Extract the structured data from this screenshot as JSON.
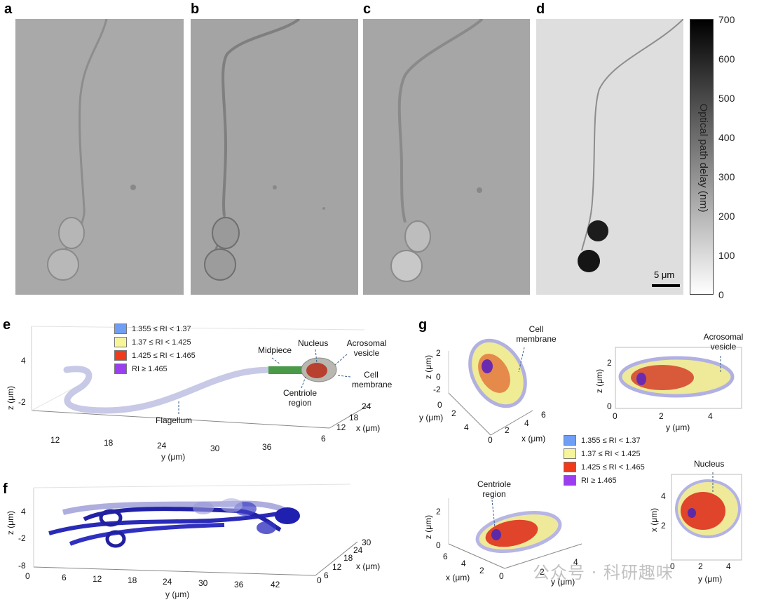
{
  "panels": {
    "a": "a",
    "b": "b",
    "c": "c",
    "d": "d",
    "e": "e",
    "f": "f",
    "g": "g"
  },
  "colorbar": {
    "title": "Optical path delay (nm)",
    "ticks": [
      "700",
      "600",
      "500",
      "400",
      "300",
      "200",
      "100",
      "0"
    ],
    "scale_bar": "5 μm"
  },
  "legend": {
    "items": [
      {
        "label": "1.355 ≤ RI < 1.37",
        "color": "#6e9ef5"
      },
      {
        "label": "1.37 ≤ RI < 1.425",
        "color": "#f7f59a"
      },
      {
        "label": "1.425 ≤ RI < 1.465",
        "color": "#f03a1c"
      },
      {
        "label": "RI ≥ 1.465",
        "color": "#9b3ef0"
      }
    ]
  },
  "panel_e": {
    "annotations": {
      "midpiece": "Midpiece",
      "nucleus": "Nucleus",
      "acrosomal": "Acrosomal vesicle",
      "cell_membrane": "Cell membrane",
      "centriole": "Centriole region",
      "flagellum": "Flagellum"
    },
    "z_label": "z (μm)",
    "z_ticks": [
      "4",
      "-2"
    ],
    "y_label": "y (μm)",
    "y_ticks": [
      "12",
      "18",
      "24",
      "30",
      "36"
    ],
    "x_label": "x (μm)",
    "x_ticks": [
      "24",
      "18",
      "12",
      "6"
    ]
  },
  "panel_f": {
    "z_label": "z (μm)",
    "z_ticks": [
      "4",
      "-2",
      "-8"
    ],
    "y_label": "y (μm)",
    "y_ticks": [
      "0",
      "6",
      "12",
      "18",
      "24",
      "30",
      "36",
      "42"
    ],
    "x_label": "x (μm)",
    "x_ticks": [
      "30",
      "24",
      "18",
      "12",
      "6",
      "0"
    ]
  },
  "panel_g": {
    "top_left": {
      "annotation": "Cell membrane",
      "z_label": "z (μm)",
      "z_ticks": [
        "2",
        "0",
        "-2"
      ],
      "y_label": "y (μm)",
      "y_ticks": [
        "0",
        "2",
        "4"
      ],
      "x_label": "x (μm)",
      "x_ticks": [
        "0",
        "2",
        "4",
        "6"
      ]
    },
    "top_right": {
      "annotation": "Acrosomal vesicle",
      "z_label": "z (μm)",
      "z_ticks": [
        "2",
        "0"
      ],
      "y_label": "y (μm)",
      "y_ticks": [
        "0",
        "2",
        "4"
      ]
    },
    "bottom_left": {
      "annotation": "Centriole region",
      "z_label": "z (μm)",
      "z_ticks": [
        "2",
        "0"
      ],
      "x_label": "x (μm)",
      "x_ticks": [
        "6",
        "4",
        "2",
        "0"
      ],
      "y_label": "y (μm)",
      "y_ticks": [
        "2",
        "4"
      ]
    },
    "bottom_right": {
      "annotation": "Nucleus",
      "x_label": "x (μm)",
      "x_ticks": [
        "4",
        "2"
      ],
      "y_label": "y (μm)",
      "y_ticks": [
        "0",
        "2",
        "4"
      ]
    }
  },
  "watermark": "公众号 · 科研趣味"
}
